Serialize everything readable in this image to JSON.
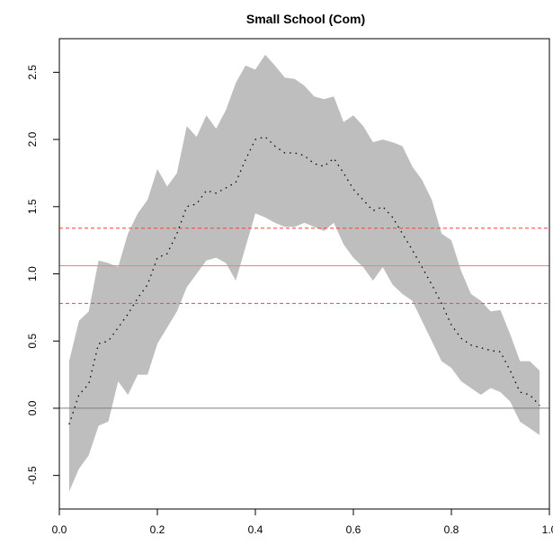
{
  "chart_data": {
    "type": "line",
    "title": "Small School (Com)",
    "xlabel": "",
    "ylabel": "",
    "xlim": [
      0.0,
      1.0
    ],
    "ylim": [
      -0.75,
      2.75
    ],
    "x_ticks": [
      0.0,
      0.2,
      0.4,
      0.6,
      0.8,
      1.0
    ],
    "x_tick_labels": [
      "0.0",
      "0.2",
      "0.4",
      "0.6",
      "0.8",
      "1.0"
    ],
    "y_ticks": [
      -0.5,
      0.0,
      0.5,
      1.0,
      1.5,
      2.0,
      2.5
    ],
    "y_tick_labels": [
      "-0.5",
      "0.0",
      "0.5",
      "1.0",
      "1.5",
      "2.0",
      "2.5"
    ],
    "grid": false,
    "x": [
      0.02,
      0.04,
      0.06,
      0.08,
      0.1,
      0.12,
      0.14,
      0.16,
      0.18,
      0.2,
      0.22,
      0.24,
      0.26,
      0.28,
      0.3,
      0.32,
      0.34,
      0.36,
      0.38,
      0.4,
      0.42,
      0.44,
      0.46,
      0.48,
      0.5,
      0.52,
      0.54,
      0.56,
      0.58,
      0.6,
      0.62,
      0.64,
      0.66,
      0.68,
      0.7,
      0.72,
      0.74,
      0.76,
      0.78,
      0.8,
      0.82,
      0.84,
      0.86,
      0.88,
      0.9,
      0.92,
      0.94,
      0.96,
      0.98
    ],
    "series": [
      {
        "role": "estimate",
        "style": "dotted",
        "color": "#000000",
        "values": [
          -0.12,
          0.1,
          0.18,
          0.48,
          0.5,
          0.6,
          0.7,
          0.82,
          0.92,
          1.12,
          1.15,
          1.3,
          1.5,
          1.52,
          1.62,
          1.6,
          1.64,
          1.68,
          1.85,
          2.0,
          2.02,
          1.95,
          1.9,
          1.9,
          1.88,
          1.82,
          1.8,
          1.86,
          1.75,
          1.63,
          1.55,
          1.47,
          1.5,
          1.42,
          1.3,
          1.18,
          1.05,
          0.92,
          0.78,
          0.62,
          0.52,
          0.47,
          0.45,
          0.43,
          0.42,
          0.28,
          0.12,
          0.1,
          0.02
        ]
      },
      {
        "role": "upper band",
        "color": "#bebebe",
        "values": [
          0.35,
          0.65,
          0.72,
          1.1,
          1.08,
          1.05,
          1.3,
          1.45,
          1.55,
          1.78,
          1.65,
          1.75,
          2.1,
          2.02,
          2.18,
          2.08,
          2.22,
          2.42,
          2.55,
          2.52,
          2.63,
          2.55,
          2.46,
          2.45,
          2.4,
          2.32,
          2.3,
          2.32,
          2.13,
          2.18,
          2.1,
          1.98,
          2.0,
          1.98,
          1.95,
          1.8,
          1.7,
          1.55,
          1.3,
          1.25,
          1.02,
          0.85,
          0.8,
          0.72,
          0.73,
          0.55,
          0.35,
          0.35,
          0.28
        ]
      },
      {
        "role": "lower band",
        "color": "#bebebe",
        "values": [
          -0.62,
          -0.45,
          -0.35,
          -0.13,
          -0.1,
          0.2,
          0.1,
          0.25,
          0.25,
          0.48,
          0.6,
          0.72,
          0.9,
          1.0,
          1.1,
          1.12,
          1.08,
          0.95,
          1.2,
          1.45,
          1.42,
          1.38,
          1.35,
          1.35,
          1.38,
          1.35,
          1.32,
          1.38,
          1.22,
          1.12,
          1.05,
          0.95,
          1.05,
          0.92,
          0.85,
          0.8,
          0.65,
          0.5,
          0.35,
          0.3,
          0.2,
          0.15,
          0.1,
          0.15,
          0.12,
          0.05,
          -0.1,
          -0.15,
          -0.2
        ]
      }
    ],
    "hlines": [
      {
        "y": 1.06,
        "color": "#f08080",
        "style": "solid"
      },
      {
        "y": 1.34,
        "color": "#ff4040",
        "style": "dashed"
      },
      {
        "y": 0.78,
        "color": "#ff4040",
        "style": "dashed"
      },
      {
        "y": 0.0,
        "color": "#808080",
        "style": "solid"
      }
    ]
  }
}
